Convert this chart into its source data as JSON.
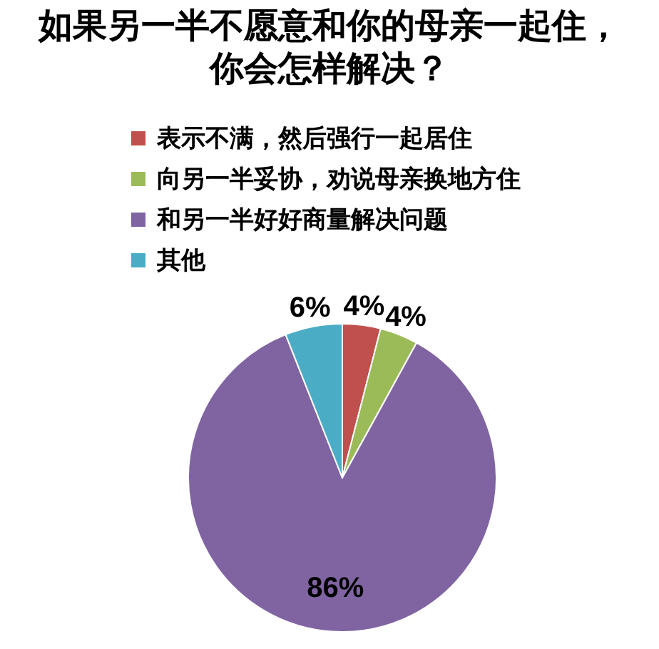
{
  "chart_data": {
    "type": "pie",
    "title": "如果另一半不愿意和你的母亲一起住，你会怎样解决？",
    "categories": [
      "表示不满，然后强行一起居住",
      "向另一半妥协，劝说母亲换地方住",
      "和另一半好好商量解决问题",
      "其他"
    ],
    "values": [
      4,
      4,
      86,
      6
    ],
    "colors": [
      "#c0504d",
      "#9bbb59",
      "#8064a2",
      "#4bacc6"
    ],
    "value_labels": [
      "4%",
      "4%",
      "86%",
      "6%"
    ],
    "legend": "top"
  }
}
